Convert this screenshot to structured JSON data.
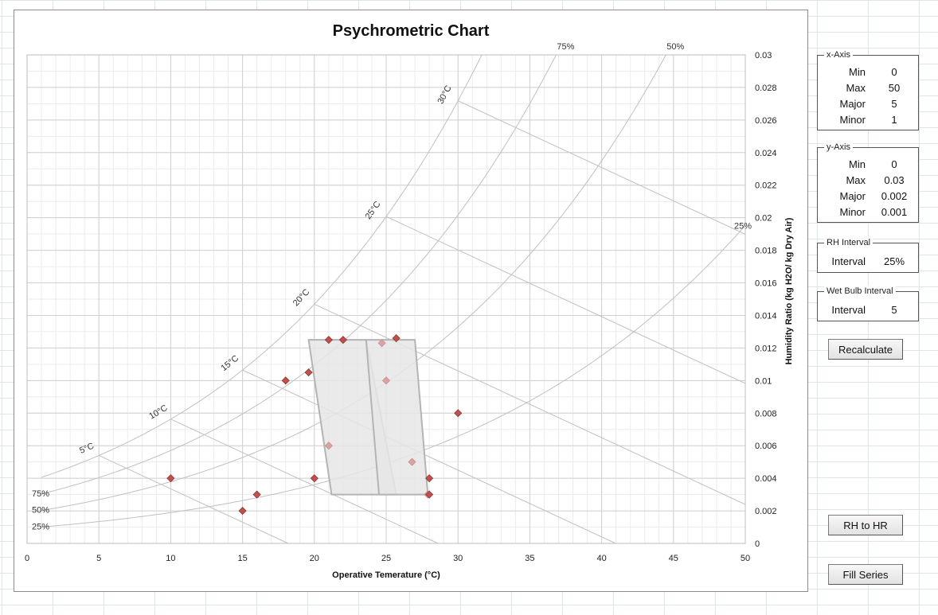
{
  "chart_data": {
    "type": "scatter",
    "title": "Psychrometric Chart",
    "xlabel": "Operative Temerature (°C)",
    "ylabel": "Humidity Ratio (kg H2O/ kg Dry Air)",
    "xlim": [
      0,
      50
    ],
    "ylim": [
      0,
      0.03
    ],
    "x_major": 5,
    "x_minor": 1,
    "y_major": 0.002,
    "y_minor": 0.001,
    "grid": true,
    "x_ticks": [
      "0",
      "5",
      "10",
      "15",
      "20",
      "25",
      "30",
      "35",
      "40",
      "45",
      "50"
    ],
    "y_ticks": [
      "0",
      "0.002",
      "0.004",
      "0.006",
      "0.008",
      "0.01",
      "0.012",
      "0.014",
      "0.016",
      "0.018",
      "0.02",
      "0.022",
      "0.024",
      "0.026",
      "0.028",
      "0.03"
    ],
    "rh_curves": [
      {
        "label": "25%",
        "rh": 0.25
      },
      {
        "label": "50%",
        "rh": 0.5
      },
      {
        "label": "75%",
        "rh": 0.75
      },
      {
        "label": "",
        "rh": 1.0
      }
    ],
    "wet_bulb_lines": [
      {
        "label": "5°C",
        "t": 5
      },
      {
        "label": "10°C",
        "t": 10
      },
      {
        "label": "15°C",
        "t": 15
      },
      {
        "label": "20°C",
        "t": 20
      },
      {
        "label": "25°C",
        "t": 25
      },
      {
        "label": "30°C",
        "t": 30
      }
    ],
    "comfort_zones": [
      [
        [
          19.6,
          0.0125
        ],
        [
          23.6,
          0.0125
        ],
        [
          25.7,
          0.003
        ],
        [
          21.2,
          0.003
        ]
      ],
      [
        [
          23.6,
          0.0125
        ],
        [
          27.0,
          0.0125
        ],
        [
          27.9,
          0.003
        ],
        [
          24.5,
          0.003
        ]
      ]
    ],
    "points_red": [
      [
        10,
        0.004
      ],
      [
        15,
        0.002
      ],
      [
        16,
        0.003
      ],
      [
        18,
        0.01
      ],
      [
        19.6,
        0.0105
      ],
      [
        20,
        0.004
      ],
      [
        21,
        0.0125
      ],
      [
        22,
        0.0125
      ],
      [
        25.7,
        0.0126
      ],
      [
        28,
        0.004
      ],
      [
        28,
        0.003
      ],
      [
        30,
        0.008
      ]
    ],
    "points_pink": [
      [
        21,
        0.006
      ],
      [
        24.7,
        0.0123
      ],
      [
        25,
        0.01
      ],
      [
        26.8,
        0.005
      ],
      [
        27.9,
        0.003
      ]
    ]
  },
  "x_axis_box": {
    "title": "x-Axis",
    "rows": [
      {
        "label": "Min",
        "value": "0"
      },
      {
        "label": "Max",
        "value": "50"
      },
      {
        "label": "Major",
        "value": "5"
      },
      {
        "label": "Minor",
        "value": "1"
      }
    ]
  },
  "y_axis_box": {
    "title": "y-Axis",
    "rows": [
      {
        "label": "Min",
        "value": "0"
      },
      {
        "label": "Max",
        "value": "0.03"
      },
      {
        "label": "Major",
        "value": "0.002"
      },
      {
        "label": "Minor",
        "value": "0.001"
      }
    ]
  },
  "rh_box": {
    "title": "RH Interval",
    "label": "Interval",
    "value": "25%"
  },
  "wb_box": {
    "title": "Wet Bulb Interval",
    "label": "Interval",
    "value": "5"
  },
  "buttons": {
    "recalculate": "Recalculate",
    "rh_to_hr": "RH to HR",
    "fill_series": "Fill Series"
  },
  "colors": {
    "grid_minor": "#ececec",
    "grid_major": "#d0d0d0",
    "curve": "#c0c0c0",
    "zone_fill": "#e6e6e6",
    "zone_stroke": "#b4b4b4",
    "marker_red": "#c0504d",
    "marker_pink": "#d9a3a1"
  }
}
